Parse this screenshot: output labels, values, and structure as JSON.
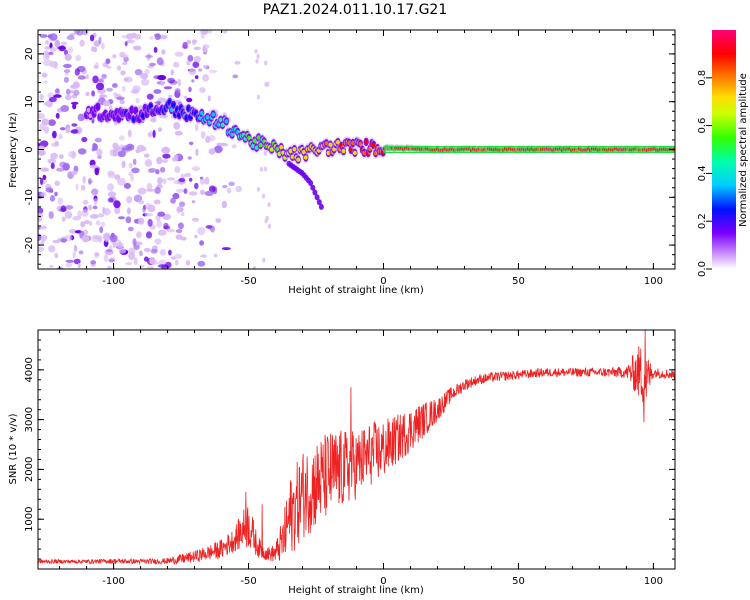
{
  "title": "PAZ1.2024.011.10.17.G21",
  "colors": {
    "snr_line": "#ee2222",
    "axis": "#000000",
    "speckle_light": "#d9b8f5",
    "speckle_mid": "#a06af0",
    "speckle_dark": "#6a00e8",
    "carrier_core": "#ff1a66",
    "carrier_halo": "#22dd44"
  },
  "chart_data": [
    {
      "type": "heatmap",
      "name": "spectrogram",
      "xlabel": "Height of straight line (km)",
      "ylabel": "Frequency (Hz)",
      "xlim": [
        -128,
        108
      ],
      "ylim": [
        -25,
        25
      ],
      "xticks": [
        -100,
        -50,
        0,
        50,
        100
      ],
      "yticks": [
        -20,
        -10,
        0,
        10,
        20
      ],
      "grid": false,
      "colorbar": {
        "label": "Normalized spectral amplitude",
        "range": [
          0,
          1
        ],
        "ticks": [
          0.0,
          0.2,
          0.4,
          0.6,
          0.8
        ],
        "colormap": "gist_ncar-like (white→violet→blue→cyan→green→yellow→orange→red→magenta)"
      },
      "ridge": {
        "description": "Dominant frequency track vs height",
        "x": [
          -110,
          -100,
          -90,
          -80,
          -70,
          -62,
          -55,
          -50,
          -45,
          -40,
          -35,
          -30,
          -25,
          -20,
          -10,
          0,
          10,
          20,
          40,
          60,
          80,
          100,
          108
        ],
        "y": [
          8,
          7.5,
          7.5,
          9,
          7,
          6,
          4,
          2,
          1,
          0,
          -1,
          -1,
          0,
          0.5,
          0.5,
          0.3,
          0.2,
          0,
          0,
          0,
          0,
          0,
          0
        ],
        "amplitude": [
          0.2,
          0.2,
          0.22,
          0.3,
          0.35,
          0.42,
          0.45,
          0.55,
          0.6,
          0.65,
          0.7,
          0.75,
          0.78,
          0.85,
          0.88,
          0.9,
          0.92,
          0.95,
          0.95,
          0.95,
          0.95,
          0.95,
          0.95
        ]
      },
      "secondary_branch": {
        "x": [
          -35,
          -30,
          -27,
          -23
        ],
        "y": [
          -3,
          -5,
          -7,
          -12
        ]
      },
      "noise_region": {
        "x_range": [
          -128,
          -50
        ],
        "y_range": [
          -25,
          25
        ]
      }
    },
    {
      "type": "line",
      "name": "snr",
      "xlabel": "Height of straight line (km)",
      "ylabel": "SNR (10 * v/v)",
      "xlim": [
        -128,
        108
      ],
      "ylim": [
        0,
        4800
      ],
      "xticks": [
        -100,
        -50,
        0,
        50,
        100
      ],
      "yticks": [
        1000,
        2000,
        3000,
        4000
      ],
      "grid": false,
      "series": [
        {
          "envelope_x": [
            -128,
            -110,
            -100,
            -90,
            -80,
            -75,
            -70,
            -65,
            -60,
            -55,
            -52,
            -50,
            -47,
            -45,
            -42,
            -40,
            -37,
            -35,
            -30,
            -25,
            -20,
            -15,
            -10,
            -5,
            0,
            5,
            10,
            15,
            20,
            25,
            30,
            35,
            40,
            50,
            60,
            70,
            80,
            90,
            95,
            97,
            100,
            108
          ],
          "envelope_mean": [
            150,
            150,
            160,
            150,
            160,
            200,
            250,
            320,
            400,
            600,
            800,
            900,
            500,
            350,
            300,
            320,
            600,
            1000,
            1500,
            1700,
            1900,
            2000,
            2100,
            2300,
            2400,
            2600,
            2800,
            3000,
            3200,
            3500,
            3700,
            3800,
            3850,
            3900,
            3950,
            3950,
            3950,
            3950,
            3950,
            3800,
            3950,
            3900
          ],
          "noise_amplitude": [
            40,
            40,
            50,
            50,
            60,
            100,
            120,
            150,
            200,
            250,
            400,
            500,
            250,
            150,
            150,
            200,
            500,
            800,
            900,
            900,
            900,
            800,
            700,
            650,
            600,
            500,
            450,
            350,
            250,
            150,
            120,
            100,
            100,
            90,
            90,
            90,
            90,
            120,
            600,
            600,
            100,
            100
          ],
          "spikes": [
            {
              "x": -51,
              "y": 1550
            },
            {
              "x": -45,
              "y": 1300
            },
            {
              "x": -12,
              "y": 3650
            },
            {
              "x": 97,
              "y": 4850
            },
            {
              "x": 96.5,
              "y": 2950
            }
          ]
        }
      ]
    }
  ]
}
